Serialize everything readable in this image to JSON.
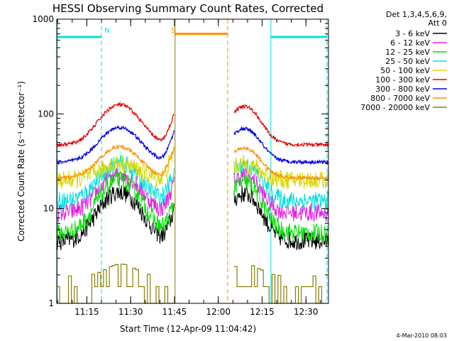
{
  "chart_data": {
    "type": "line",
    "title": "HESSI Observing Summary Count Rates, Corrected",
    "xlabel": "Start Time (12-Apr-09 11:04:42)",
    "ylabel": "Corrected Count Rate (s⁻¹ detector⁻¹)",
    "yscale": "log",
    "ylim": [
      1,
      1000
    ],
    "xlim_minutes": [
      0,
      93
    ],
    "y_ticks": [
      {
        "value": 1,
        "label": "1"
      },
      {
        "value": 10,
        "label": "10"
      },
      {
        "value": 100,
        "label": "100"
      },
      {
        "value": 1000,
        "label": "1000"
      }
    ],
    "x_ticks": [
      {
        "minute": 10.3,
        "label": "11:15"
      },
      {
        "minute": 25.3,
        "label": "11:30"
      },
      {
        "minute": 40.3,
        "label": "11:45"
      },
      {
        "minute": 55.3,
        "label": "12:00"
      },
      {
        "minute": 70.3,
        "label": "12:15"
      },
      {
        "minute": 85.3,
        "label": "12:30"
      }
    ],
    "legend": {
      "header_line1": "Det 1,3,4,5,6,9,",
      "header_line2": "Att 0",
      "placement": "right"
    },
    "series": [
      {
        "name": "3 - 6 keV",
        "color": "#000000",
        "base": 4.5,
        "peak": 15,
        "style": "noisy"
      },
      {
        "name": "6 - 12 keV",
        "color": "#e020e0",
        "base": 9,
        "peak": 23,
        "style": "noisy"
      },
      {
        "name": "12 - 25 keV",
        "color": "#00e000",
        "base": 5.5,
        "peak": 20,
        "style": "noisy"
      },
      {
        "name": "25 - 50 keV",
        "color": "#00e0e0",
        "base": 12,
        "peak": 30,
        "style": "noisy"
      },
      {
        "name": "50 - 100 keV",
        "color": "#d8d800",
        "base": 20,
        "peak": 30,
        "style": "noisy"
      },
      {
        "name": "100 - 300 keV",
        "color": "#e00000",
        "base": 47,
        "peak": 125,
        "style": "smooth"
      },
      {
        "name": "300 - 800 keV",
        "color": "#0000e0",
        "base": 31,
        "peak": 72,
        "style": "smooth"
      },
      {
        "name": "800 - 7000 keV",
        "color": "#ff8c00",
        "base": 21,
        "peak": 45,
        "style": "smooth"
      },
      {
        "name": "7000 - 20000 keV",
        "color": "#8b7d00",
        "base": 1.5,
        "peak": 2.6,
        "style": "step"
      }
    ],
    "segments": [
      {
        "start": 0,
        "end": 40.2
      },
      {
        "start": 60.7,
        "end": 93
      }
    ],
    "vertical_markers": [
      {
        "minute": 0.2,
        "color": "#00e0e0",
        "style": "solid"
      },
      {
        "minute": 15.3,
        "color": "#00e0e0",
        "style": "dashed"
      },
      {
        "minute": 40.5,
        "color": "#8b7d00",
        "style": "solid"
      },
      {
        "minute": 58.5,
        "color": "#ff8c00",
        "style": "dashed"
      },
      {
        "minute": 73.3,
        "color": "#00e0e0",
        "style": "solid"
      },
      {
        "minute": 92.5,
        "color": "#00e0e0",
        "style": "dashed"
      }
    ],
    "night_bars": [
      {
        "start": 0.2,
        "end": 15.3,
        "color": "#00e0e0",
        "y": 650
      },
      {
        "start": 73.3,
        "end": 92.5,
        "color": "#00e0e0",
        "y": 650
      }
    ],
    "saa_bar": {
      "start": 40.5,
      "end": 58.5,
      "color": "#ff8c00",
      "y": 700
    },
    "markers_text": [
      {
        "label": "N",
        "minute": 15.3,
        "color": "#00e0e0"
      },
      {
        "label": "S",
        "minute": 40.5,
        "color": "#ff8c00"
      }
    ]
  },
  "footer": "4-Mar-2010 08:03"
}
